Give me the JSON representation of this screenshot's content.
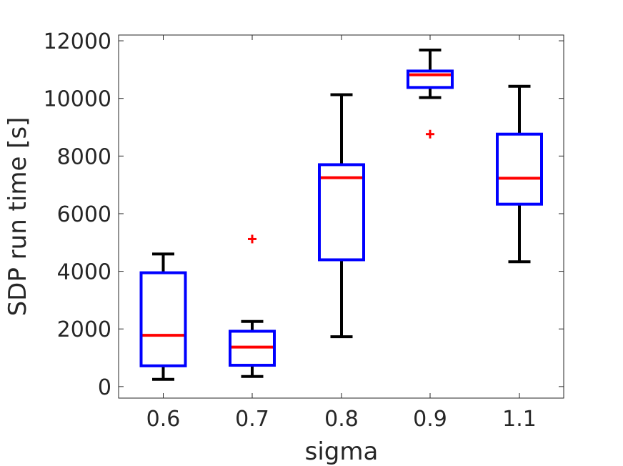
{
  "chart_data": {
    "type": "box",
    "xlabel": "sigma",
    "ylabel": "SDP run time [s]",
    "ylim": [
      -400,
      12200
    ],
    "yticks": [
      0,
      2000,
      4000,
      6000,
      8000,
      10000,
      12000
    ],
    "ytick_labels": [
      "0",
      "2000",
      "4000",
      "6000",
      "8000",
      "10000",
      "12000"
    ],
    "categories": [
      "0.6",
      "0.7",
      "0.8",
      "0.9",
      "1.1"
    ],
    "grid": false,
    "boxes": [
      {
        "category": "0.6",
        "whisker_low": 250,
        "q1": 720,
        "median": 1780,
        "q3": 3950,
        "whisker_high": 4600,
        "outliers": []
      },
      {
        "category": "0.7",
        "whisker_low": 350,
        "q1": 740,
        "median": 1370,
        "q3": 1920,
        "whisker_high": 2260,
        "outliers": [
          5120
        ]
      },
      {
        "category": "0.8",
        "whisker_low": 1730,
        "q1": 4400,
        "median": 7250,
        "q3": 7700,
        "whisker_high": 10130,
        "outliers": []
      },
      {
        "category": "0.9",
        "whisker_low": 10030,
        "q1": 10380,
        "median": 10820,
        "q3": 10950,
        "whisker_high": 11680,
        "outliers": [
          8760
        ]
      },
      {
        "category": "1.1",
        "whisker_low": 4330,
        "q1": 6330,
        "median": 7230,
        "q3": 8760,
        "whisker_high": 10420,
        "outliers": []
      }
    ],
    "colors": {
      "box": "#0000ff",
      "median": "#ff0000",
      "whisker": "#000000",
      "outlier": "#ff0000",
      "axis": "#262626"
    }
  }
}
